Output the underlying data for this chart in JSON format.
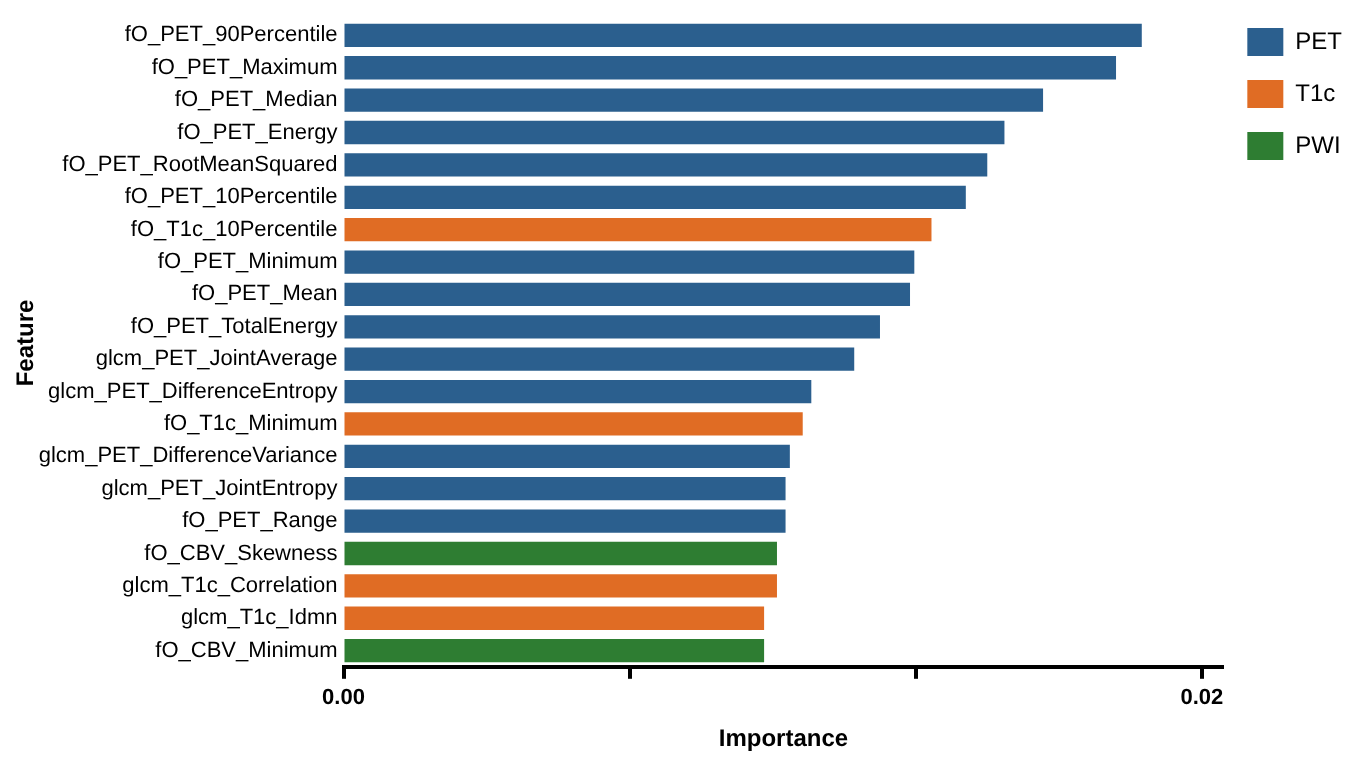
{
  "chart_data": {
    "type": "bar",
    "orientation": "horizontal",
    "stacked": true,
    "xlabel": "Importance",
    "ylabel": "Feature",
    "categories": [
      "fO_PET_90Percentile",
      "fO_PET_Maximum",
      "fO_PET_Median",
      "fO_PET_Energy",
      "fO_PET_RootMeanSquared",
      "fO_PET_10Percentile",
      "fO_T1c_10Percentile",
      "fO_PET_Minimum",
      "fO_PET_Mean",
      "fO_PET_TotalEnergy",
      "glcm_PET_JointAverage",
      "glcm_PET_DifferenceEntropy",
      "fO_T1c_Minimum",
      "glcm_PET_DifferenceVariance",
      "glcm_PET_JointEntropy",
      "fO_PET_Range",
      "fO_CBV_Skewness",
      "glcm_T1c_Correlation",
      "glcm_T1c_Idmn",
      "fO_CBV_Minimum"
    ],
    "series": [
      {
        "name": "PET",
        "color": "#2b5f8e",
        "values": [
          0.0186,
          0.018,
          0.0163,
          0.0154,
          0.015,
          0.0145,
          null,
          0.0133,
          0.0132,
          0.0125,
          0.0119,
          0.0109,
          null,
          0.0104,
          0.0103,
          0.0103,
          null,
          null,
          null,
          null
        ]
      },
      {
        "name": "T1c",
        "color": "#e06c24",
        "values": [
          null,
          null,
          null,
          null,
          null,
          null,
          0.0137,
          null,
          null,
          null,
          null,
          null,
          0.0107,
          null,
          null,
          null,
          null,
          0.0101,
          0.0098,
          null
        ]
      },
      {
        "name": "PWI",
        "color": "#2e7d32",
        "values": [
          null,
          null,
          null,
          null,
          null,
          null,
          null,
          null,
          null,
          null,
          null,
          null,
          null,
          null,
          null,
          null,
          0.0101,
          null,
          null,
          0.0098
        ]
      }
    ],
    "xlim": [
      0,
      0.0205
    ],
    "xticks": [
      {
        "value": 0,
        "label": "0.00"
      },
      {
        "value": 0.00667,
        "label": null
      },
      {
        "value": 0.01333,
        "label": null
      },
      0.02
    ],
    "legend": "top right",
    "grid": false
  }
}
